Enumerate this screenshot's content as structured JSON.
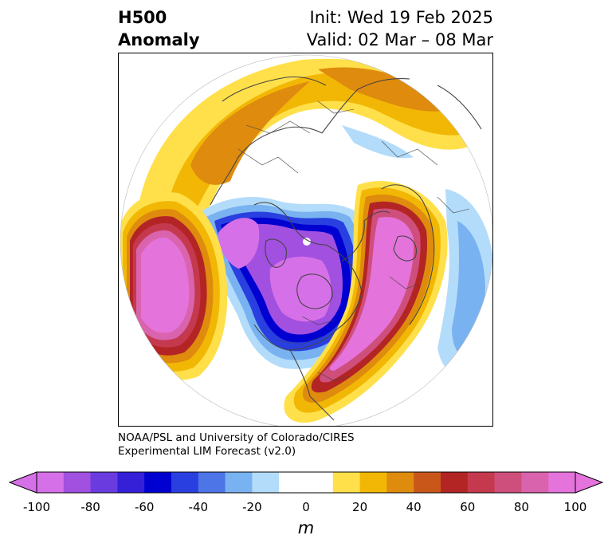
{
  "title": {
    "left_line1": "H500",
    "left_line2": "Anomaly",
    "right_line1": "Init: Wed 19 Feb 2025",
    "right_line2": "Valid: 02 Mar – 08 Mar"
  },
  "credit": {
    "line1": "NOAA/PSL and University of Colorado/CIRES",
    "line2": "Experimental LIM Forecast (v2.0)"
  },
  "colorbar": {
    "unit": "m",
    "ticks": [
      "-100",
      "-80",
      "-60",
      "-40",
      "-20",
      "0",
      "20",
      "40",
      "60",
      "80",
      "100"
    ],
    "colors": [
      "#d670e8",
      "#a150e0",
      "#6a3ce0",
      "#3520d8",
      "#0000d0",
      "#2a3fe0",
      "#4d75e8",
      "#79b2f0",
      "#b3dcfb",
      "#ffffff",
      "#ffffff",
      "#ffe04a",
      "#f2b705",
      "#de8b0e",
      "#c9571a",
      "#b32424",
      "#c4394e",
      "#cf4f7c",
      "#da63ad",
      "#e473db"
    ],
    "under_color": "#d670e8",
    "over_color": "#e473db"
  },
  "map": {
    "projection": "north-polar-stereographic",
    "coastline_color": "#444444",
    "legend_min": -100,
    "legend_max": 100
  }
}
